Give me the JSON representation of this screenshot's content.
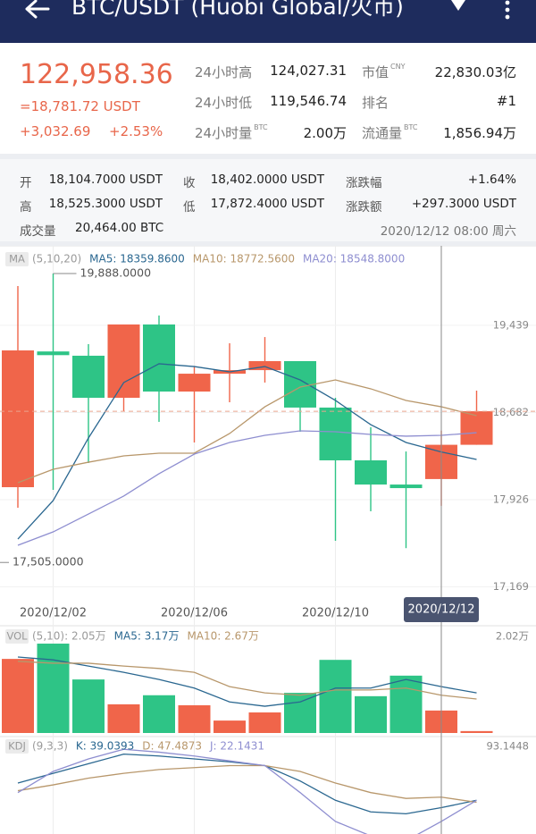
{
  "header": {
    "title": "BTC/USDT (Huobi Global/火币)"
  },
  "summary": {
    "price": "122,958.36",
    "price_usdt": "=18,781.72 USDT",
    "change": "+3,032.69",
    "change_pct": "+2.53%",
    "stats": [
      {
        "label": "24小时高",
        "value": "124,027.31"
      },
      {
        "label": "市值",
        "unit": "CNY",
        "value": "22,830.03亿"
      },
      {
        "label": "24小时低",
        "value": "119,546.74"
      },
      {
        "label": "排名",
        "value": "#1"
      },
      {
        "label": "24小时量",
        "unit": "BTC",
        "value": "2.00万"
      },
      {
        "label": "流通量",
        "unit": "BTC",
        "value": "1,856.94万"
      }
    ]
  },
  "detail": {
    "rows": [
      [
        {
          "label": "开",
          "value": "18,104.7000 USDT"
        },
        {
          "label": "收",
          "value": "18,402.0000 USDT"
        },
        {
          "label": "涨跌幅",
          "value": "+1.64%"
        }
      ],
      [
        {
          "label": "高",
          "value": "18,525.3000 USDT"
        },
        {
          "label": "低",
          "value": "17,872.4000 USDT"
        },
        {
          "label": "涨跌额",
          "value": "+297.3000 USDT"
        }
      ]
    ],
    "volume": {
      "label": "成交量",
      "value": "20,464.00 BTC"
    },
    "time": "2020/12/12 08:00 周六"
  },
  "chart_data": [
    {
      "type": "candlestick",
      "indicator": "MA",
      "legend": [
        {
          "label": "(5,10,20)",
          "color": "#9a9a9a"
        },
        {
          "label": "MA5: 18359.8600",
          "color": "#2a6790"
        },
        {
          "label": "MA10: 18772.5600",
          "color": "#b8976b"
        },
        {
          "label": "MA20: 18548.8000",
          "color": "#8e8ed0"
        }
      ],
      "categories": [
        null,
        "2020/12/02",
        null,
        null,
        null,
        "2020/12/06",
        null,
        null,
        null,
        "2020/12/10",
        null,
        null,
        "2020/12/12",
        null
      ],
      "selected_index": 12,
      "open": [
        18034,
        19212,
        19175,
        18810,
        19446,
        18864,
        19019,
        19050,
        19128,
        18725,
        18267,
        18057,
        18104.7,
        18402
      ],
      "high": [
        19780,
        19888,
        19275,
        19446,
        19524,
        19080,
        19283,
        19337,
        19128,
        18810,
        18554,
        18344,
        18525.3,
        18872
      ],
      "low": [
        17856,
        18011,
        18244,
        18693,
        18601,
        18422,
        18771,
        18942,
        18515,
        17569,
        17825,
        17505,
        17872.4,
        18402
      ],
      "close": [
        19221,
        19180,
        18810,
        19446,
        18864,
        19019,
        19050,
        19128,
        18725,
        18267,
        18057,
        18026,
        18402,
        18693
      ],
      "up_color": "#f0654a",
      "down_color": "#2ec486",
      "series": [
        {
          "color": "#2a6790",
          "values": [
            17584,
            17918,
            18461,
            18942,
            19105,
            19081,
            19035,
            19081,
            18965,
            18787,
            18577,
            18422,
            18340,
            18275
          ]
        },
        {
          "color": "#b8976b",
          "values": [
            18073,
            18189,
            18251,
            18306,
            18329,
            18329,
            18500,
            18732,
            18903,
            18965,
            18888,
            18787,
            18732,
            18655
          ]
        },
        {
          "color": "#8e8ed0",
          "values": [
            17530,
            17646,
            17801,
            17957,
            18151,
            18321,
            18422,
            18484,
            18523,
            18515,
            18492,
            18477,
            18484,
            18507
          ]
        }
      ],
      "ylim": [
        17080,
        20090
      ],
      "yticks": [
        {
          "value": 19439,
          "label": "19,439"
        },
        {
          "value": 18682,
          "label": "18,682"
        },
        {
          "value": 17926,
          "label": "17,926"
        },
        {
          "value": 17169,
          "label": "17,169"
        }
      ],
      "max_label": "19,888.0000",
      "min_label": "17,505.0000",
      "grid": true
    },
    {
      "type": "bar",
      "indicator": "VOL",
      "legend": [
        {
          "label": "(5,10): 2.05万",
          "color": "#9a9a9a"
        },
        {
          "label": "MA5: 3.17万",
          "color": "#2a6790"
        },
        {
          "label": "MA10: 2.67万",
          "color": "#b8976b"
        }
      ],
      "values": [
        1.55,
        1.87,
        1.12,
        0.6,
        0.79,
        0.58,
        0.26,
        0.43,
        0.84,
        1.53,
        0.77,
        1.2,
        0.47,
        0.04
      ],
      "series": [
        {
          "color": "#2a6790",
          "values": [
            1.59,
            1.53,
            1.4,
            1.27,
            1.12,
            0.94,
            0.65,
            0.56,
            0.65,
            0.94,
            0.94,
            1.12,
            0.97,
            0.84
          ]
        },
        {
          "color": "#b8976b",
          "values": [
            1.5,
            1.46,
            1.46,
            1.4,
            1.35,
            1.27,
            0.97,
            0.84,
            0.79,
            0.9,
            0.9,
            0.94,
            0.79,
            0.71
          ]
        }
      ],
      "ylim": [
        0,
        2.02
      ],
      "yticks": [
        {
          "value": 2.02,
          "label": "2.02万"
        }
      ]
    },
    {
      "type": "line",
      "indicator": "KDJ",
      "legend": [
        {
          "label": "(9,3,3)",
          "color": "#9a9a9a"
        },
        {
          "label": "K: 39.0393",
          "color": "#2a6790"
        },
        {
          "label": "D: 47.4873",
          "color": "#b8976b"
        },
        {
          "label": "J: 22.1431",
          "color": "#8e8ed0"
        }
      ],
      "series": [
        {
          "color": "#2a6790",
          "values": [
            58.4,
            67.6,
            76.7,
            85.8,
            84.0,
            81.3,
            78.5,
            74.9,
            60.3,
            42.0,
            31.0,
            29.2,
            35.0,
            42.0
          ]
        },
        {
          "color": "#b8976b",
          "values": [
            51.1,
            56.6,
            63.0,
            67.6,
            71.2,
            73.0,
            74.9,
            74.9,
            69.4,
            58.4,
            49.3,
            43.8,
            45.0,
            40.1
          ]
        },
        {
          "color": "#8e8ed0",
          "values": [
            49.3,
            69.4,
            81.3,
            90.4,
            87.7,
            84.0,
            79.4,
            74.9,
            49.3,
            21.9,
            8.2,
            3.6,
            21.9,
            42.0
          ]
        }
      ],
      "ylim": [
        10,
        93.1448
      ],
      "yticks": [
        93.1448
      ]
    }
  ]
}
